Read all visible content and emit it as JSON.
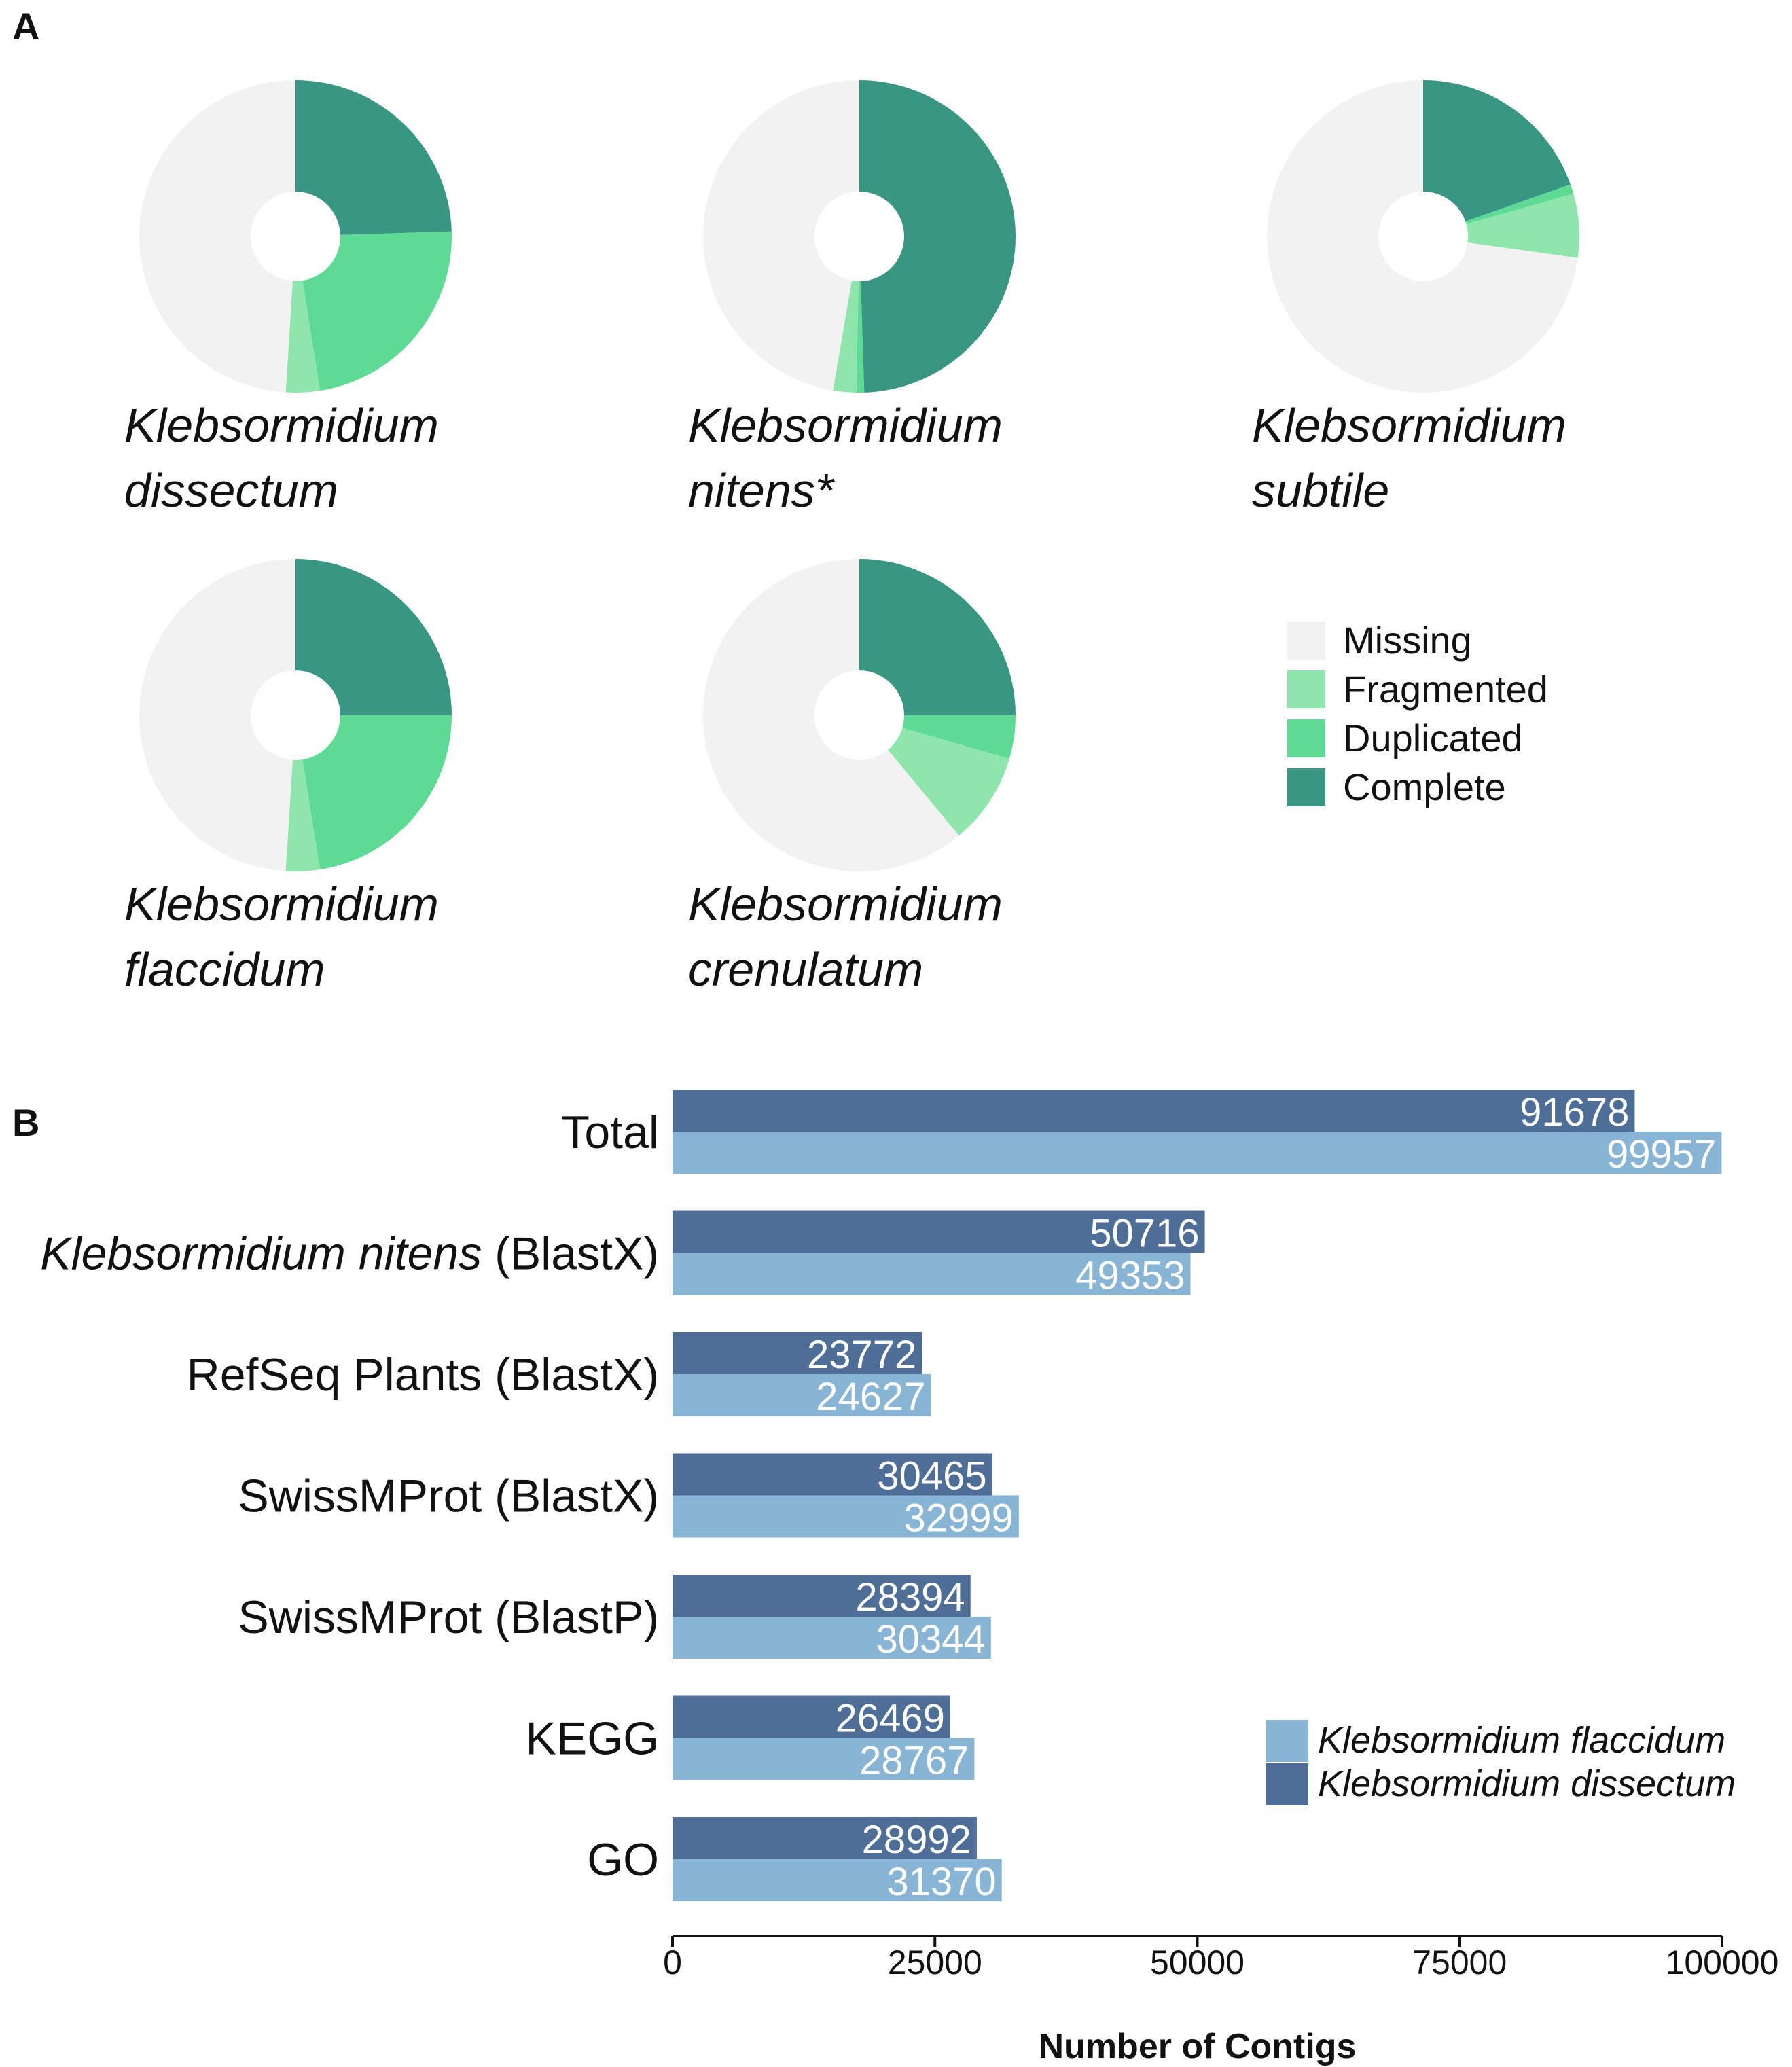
{
  "panel_a_label": "A",
  "panel_b_label": "B",
  "chart_data": [
    {
      "type": "pie",
      "subtype": "donut-grid",
      "categories": [
        "Missing",
        "Fragmented",
        "Duplicated",
        "Complete"
      ],
      "colors": {
        "Missing": "#f2f2f2",
        "Fragmented": "#8ee6ad",
        "Duplicated": "#5ddb94",
        "Complete": "#389683"
      },
      "legend_items": [
        "Missing",
        "Fragmented",
        "Duplicated",
        "Complete"
      ],
      "legend_position": "right",
      "pies": [
        {
          "name_line1": "Klebsormidium",
          "name_line2": "dissectum",
          "values": {
            "Complete": 24.5,
            "Duplicated": 23.0,
            "Fragmented": 3.5,
            "Missing": 49.0
          }
        },
        {
          "name_line1": "Klebsormidium",
          "name_line2": "nitens*",
          "values": {
            "Complete": 49.5,
            "Duplicated": 0.8,
            "Fragmented": 2.4,
            "Missing": 47.3
          }
        },
        {
          "name_line1": "Klebsormidium",
          "name_line2": "subtile",
          "values": {
            "Complete": 19.6,
            "Duplicated": 1.0,
            "Fragmented": 6.6,
            "Missing": 72.8
          }
        },
        {
          "name_line1": "Klebsormidium",
          "name_line2": "flaccidum",
          "values": {
            "Complete": 25.0,
            "Duplicated": 22.5,
            "Fragmented": 3.5,
            "Missing": 49.0
          }
        },
        {
          "name_line1": "Klebsormidium",
          "name_line2": "crenulatum",
          "values": {
            "Complete": 25.0,
            "Duplicated": 4.5,
            "Fragmented": 9.5,
            "Missing": 61.0
          }
        }
      ]
    },
    {
      "type": "bar",
      "orientation": "horizontal",
      "categories": [
        "Total",
        "Klebsormidium nitens (BlastX)",
        "RefSeq Plants (BlastX)",
        "SwissMProt (BlastX)",
        "SwissMProt (BlastP)",
        "KEGG",
        "GO"
      ],
      "category_labels": [
        {
          "italic": "",
          "plain": "Total"
        },
        {
          "italic": "Klebsormidium nitens",
          "plain": " (BlastX)"
        },
        {
          "italic": "",
          "plain": "RefSeq Plants (BlastX)"
        },
        {
          "italic": "",
          "plain": "SwissMProt (BlastX)"
        },
        {
          "italic": "",
          "plain": "SwissMProt (BlastP)"
        },
        {
          "italic": "",
          "plain": "KEGG"
        },
        {
          "italic": "",
          "plain": "GO"
        }
      ],
      "series": [
        {
          "name": "Klebsormidium dissectum",
          "color": "#4e6e98",
          "values": [
            91678,
            50716,
            23772,
            30465,
            28394,
            26469,
            28992
          ]
        },
        {
          "name": "Klebsormidium flaccidum",
          "color": "#88b4d5",
          "values": [
            99957,
            49353,
            24627,
            32999,
            30344,
            28767,
            31370
          ]
        }
      ],
      "legend_order": [
        "Klebsormidium flaccidum",
        "Klebsormidium dissectum"
      ],
      "legend_position": "bottom-right",
      "xlim": [
        0,
        100000
      ],
      "xticks": [
        0,
        25000,
        50000,
        75000,
        100000
      ],
      "xtick_labels": [
        "0",
        "25000",
        "50000",
        "75000",
        "100000"
      ],
      "xlabel": "Number of Contigs",
      "grid": false
    }
  ]
}
